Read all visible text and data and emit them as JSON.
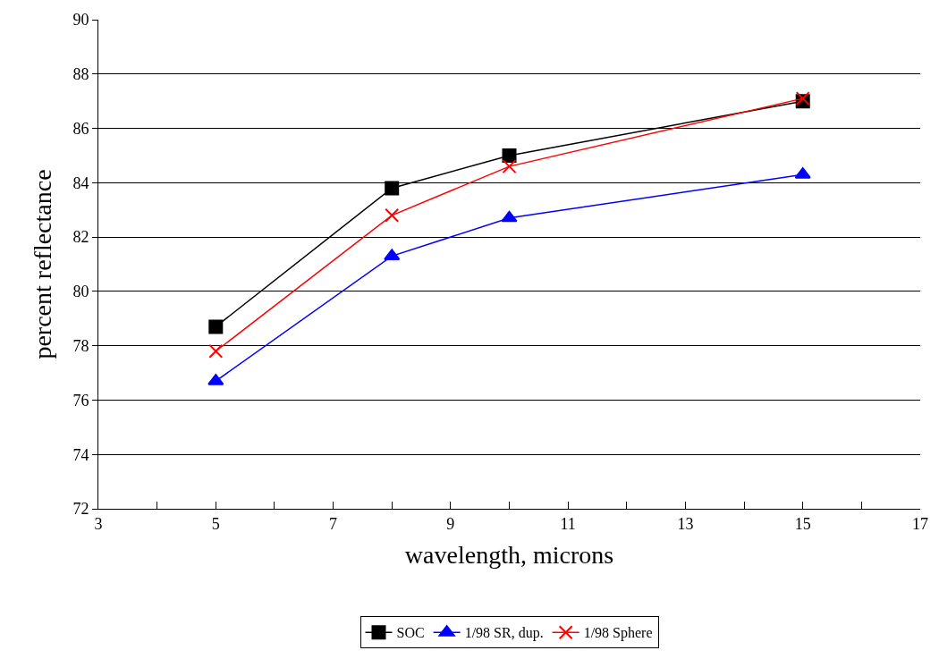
{
  "chart_data": {
    "type": "line",
    "xlabel": "wavelength, microns",
    "ylabel": "percent reflectance",
    "x": [
      5,
      8,
      10,
      15
    ],
    "series": [
      {
        "name": "SOC",
        "color": "#000000",
        "marker": "square",
        "values": [
          78.7,
          83.8,
          85.0,
          87.0
        ]
      },
      {
        "name": "1/98 SR, dup.",
        "color": "#0000ff",
        "marker": "triangle",
        "values": [
          76.7,
          81.3,
          82.7,
          84.3
        ]
      },
      {
        "name": "1/98 Sphere",
        "color": "#ff0000",
        "marker": "cross",
        "values": [
          77.8,
          82.8,
          84.6,
          87.1
        ]
      }
    ],
    "xlim": [
      3,
      17
    ],
    "xticks": [
      3,
      {
        "value": 4,
        "label": null
      },
      5,
      {
        "value": 6,
        "label": null
      },
      7,
      {
        "value": 8,
        "label": null
      },
      9,
      {
        "value": 10,
        "label": null
      },
      11,
      {
        "value": 12,
        "label": null
      },
      13,
      {
        "value": 14,
        "label": null
      },
      15,
      {
        "value": 16,
        "label": null
      },
      17
    ],
    "ylim": [
      72,
      90
    ],
    "yticks": [
      72,
      74,
      76,
      78,
      80,
      82,
      84,
      86,
      88,
      90
    ],
    "grid": "y",
    "legend": "bottom",
    "line_style": "solid"
  }
}
